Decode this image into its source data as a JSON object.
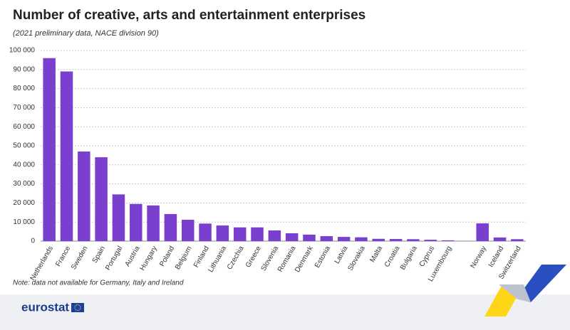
{
  "chart_data": {
    "type": "bar",
    "title": "Number of creative, arts and entertainment enterprises",
    "subtitle": "(2021 preliminary data, NACE division 90)",
    "note": "Note: data not available for Germany, Italy and Ireland",
    "categories": [
      "Netherlands",
      "France",
      "Sweden",
      "Spain",
      "Portugal",
      "Austria",
      "Hungary",
      "Poland",
      "Belgium",
      "Finland",
      "Lithuania",
      "Czechia",
      "Greece",
      "Slovenia",
      "Romania",
      "Denmark",
      "Estonia",
      "Latvia",
      "Slovakia",
      "Malta",
      "Croatia",
      "Bulgaria",
      "Cyprus",
      "Luxembourg",
      null,
      "Norway",
      "Iceland",
      "Switzerland"
    ],
    "values": [
      96000,
      89000,
      47000,
      44000,
      24500,
      19500,
      18700,
      14200,
      11200,
      9200,
      8200,
      7200,
      7200,
      5600,
      4100,
      3400,
      2600,
      2200,
      2000,
      1200,
      1100,
      1000,
      700,
      400,
      null,
      9300,
      1900,
      1000
    ],
    "color": "#7b3fd0",
    "ylim": [
      0,
      100000
    ],
    "yticks": [
      0,
      {
        "value": 10000,
        "label": "10 000"
      },
      {
        "value": 20000,
        "label": "20 000"
      },
      {
        "value": 30000,
        "label": "30 000"
      },
      {
        "value": 40000,
        "label": "40 000"
      },
      {
        "value": 50000,
        "label": "50 000"
      },
      {
        "value": 60000,
        "label": "60 000"
      },
      {
        "value": 70000,
        "label": "70 000"
      },
      {
        "value": 80000,
        "label": "80 000"
      },
      {
        "value": 90000,
        "label": "90 000"
      },
      {
        "value": 100000,
        "label": "100 000"
      }
    ],
    "grid": true
  },
  "footer": {
    "logo": "eurostat"
  }
}
